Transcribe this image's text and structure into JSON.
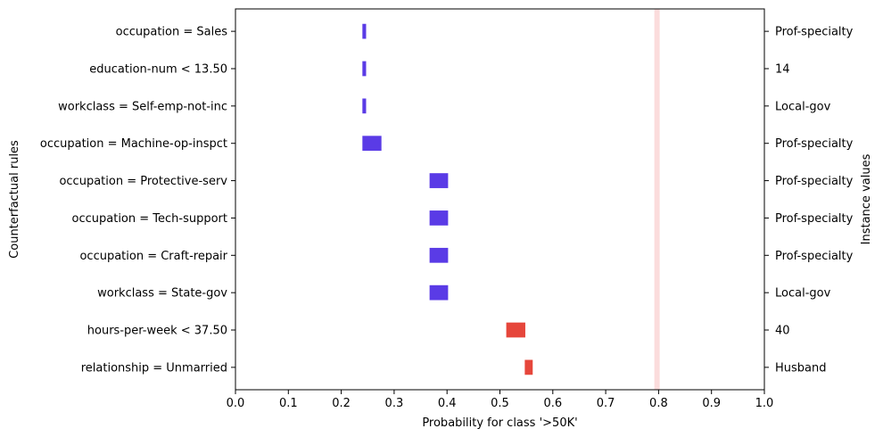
{
  "chart_data": {
    "type": "bar",
    "orientation": "horizontal",
    "xlabel": "Probability for class '>50K'",
    "ylabel": "Counterfactual rules",
    "y2label": "Instance values",
    "xlim": [
      0.0,
      1.0
    ],
    "xticks": [
      "0.0",
      "0.1",
      "0.2",
      "0.3",
      "0.4",
      "0.5",
      "0.6",
      "0.7",
      "0.8",
      "0.9",
      "1.0"
    ],
    "reference_line": {
      "x": 0.797,
      "color": "#fbdcdc"
    },
    "rules": [
      {
        "label": "occupation = Sales",
        "instance_value": "Prof-specialty",
        "low": 0.24,
        "high": 0.247,
        "color": "#5a3be6"
      },
      {
        "label": "education-num < 13.50",
        "instance_value": "14",
        "low": 0.24,
        "high": 0.247,
        "color": "#5a3be6"
      },
      {
        "label": "workclass = Self-emp-not-inc",
        "instance_value": "Local-gov",
        "low": 0.24,
        "high": 0.247,
        "color": "#5a3be6"
      },
      {
        "label": "occupation = Machine-op-inspct",
        "instance_value": "Prof-specialty",
        "low": 0.24,
        "high": 0.276,
        "color": "#5a3be6"
      },
      {
        "label": "occupation = Protective-serv",
        "instance_value": "Prof-specialty",
        "low": 0.367,
        "high": 0.402,
        "color": "#5a3be6"
      },
      {
        "label": "occupation = Tech-support",
        "instance_value": "Prof-specialty",
        "low": 0.367,
        "high": 0.402,
        "color": "#5a3be6"
      },
      {
        "label": "occupation = Craft-repair",
        "instance_value": "Prof-specialty",
        "low": 0.367,
        "high": 0.402,
        "color": "#5a3be6"
      },
      {
        "label": "workclass = State-gov",
        "instance_value": "Local-gov",
        "low": 0.367,
        "high": 0.402,
        "color": "#5a3be6"
      },
      {
        "label": "hours-per-week < 37.50",
        "instance_value": "40",
        "low": 0.512,
        "high": 0.548,
        "color": "#e6463b"
      },
      {
        "label": "relationship = Unmarried",
        "instance_value": "Husband",
        "low": 0.547,
        "high": 0.562,
        "color": "#e6463b"
      }
    ]
  }
}
